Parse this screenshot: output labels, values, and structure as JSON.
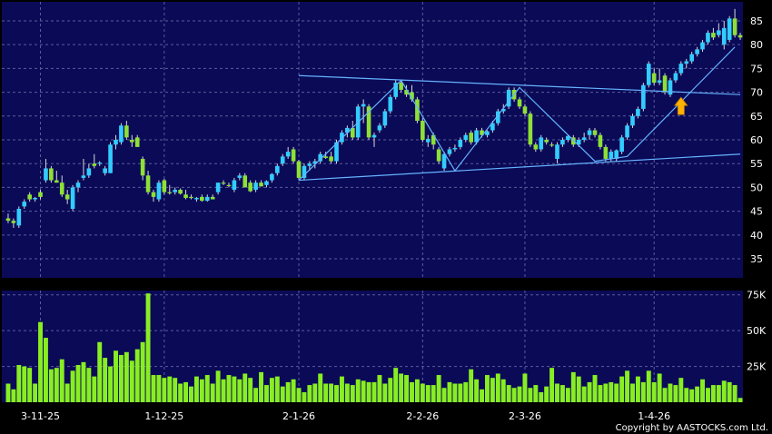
{
  "chart_data": {
    "type": "candlestick",
    "colors": {
      "background": "#000000",
      "panel": "#0a0a57",
      "grid": "#5c5c9a",
      "up_candle": "#33ccff",
      "down_candle": "#8ee036",
      "volume": "#88ee22",
      "trendline": "#66b3ff",
      "arrow": "#ffb300"
    },
    "price_axis": {
      "range": [
        31,
        89
      ],
      "ticks": [
        "35",
        "40",
        "45",
        "50",
        "55",
        "60",
        "65",
        "70",
        "75",
        "80",
        "85"
      ]
    },
    "volume_axis": {
      "range": [
        0,
        78000
      ],
      "ticks": [
        "75K",
        "50K",
        "25K"
      ]
    },
    "x_labels": [
      {
        "label": "3-11-25",
        "index": 6
      },
      {
        "label": "1-12-25",
        "index": 29
      },
      {
        "label": "2-1-26",
        "index": 54
      },
      {
        "label": "2-2-26",
        "index": 77
      },
      {
        "label": "2-3-26",
        "index": 96
      },
      {
        "label": "1-4-26",
        "index": 120
      }
    ],
    "candles": [
      [
        43.5,
        44.5,
        42.5,
        43.0
      ],
      [
        43.0,
        43.5,
        41.5,
        42.5
      ],
      [
        42.0,
        46.0,
        41.5,
        45.5
      ],
      [
        46.0,
        47.5,
        45.5,
        47.0
      ],
      [
        48.5,
        49.0,
        47.0,
        47.5
      ],
      [
        47.5,
        48.0,
        47.0,
        47.8
      ],
      [
        49.0,
        49.5,
        47.5,
        48.0
      ],
      [
        51.5,
        56.0,
        51.0,
        54.0
      ],
      [
        54.0,
        54.5,
        51.0,
        51.5
      ],
      [
        51.5,
        53.5,
        51.0,
        51.0
      ],
      [
        51.0,
        52.5,
        48.0,
        48.5
      ],
      [
        48.5,
        49.5,
        46.5,
        47.5
      ],
      [
        45.5,
        50.5,
        45.0,
        50.0
      ],
      [
        50.0,
        51.5,
        49.0,
        51.0
      ],
      [
        52.0,
        56.0,
        51.5,
        52.5
      ],
      [
        52.5,
        55.0,
        52.0,
        54.0
      ],
      [
        55.0,
        57.0,
        54.0,
        54.5
      ],
      [
        55.0,
        55.5,
        54.5,
        55.2
      ],
      [
        53.0,
        54.5,
        52.5,
        54.0
      ],
      [
        53.0,
        59.5,
        53.0,
        59.0
      ],
      [
        59.0,
        61.0,
        58.0,
        60.0
      ],
      [
        59.5,
        63.5,
        59.0,
        63.0
      ],
      [
        63.0,
        64.0,
        60.0,
        60.5
      ],
      [
        60.0,
        61.0,
        58.5,
        59.5
      ],
      [
        60.5,
        61.0,
        58.5,
        58.5
      ],
      [
        56.0,
        56.5,
        51.5,
        52.5
      ],
      [
        52.5,
        53.5,
        48.5,
        49.0
      ],
      [
        49.0,
        49.5,
        47.0,
        48.0
      ],
      [
        47.5,
        51.5,
        47.0,
        51.0
      ],
      [
        51.5,
        51.8,
        48.5,
        49.0
      ],
      [
        49.0,
        50.5,
        48.5,
        48.8
      ],
      [
        49.0,
        50.0,
        48.5,
        49.5
      ],
      [
        49.5,
        49.8,
        48.5,
        48.7
      ],
      [
        48.5,
        49.5,
        47.5,
        47.8
      ],
      [
        48.0,
        48.5,
        47.5,
        47.9
      ],
      [
        47.5,
        48.0,
        47.0,
        47.8
      ],
      [
        48.0,
        48.5,
        47.0,
        47.2
      ],
      [
        47.2,
        48.5,
        47.0,
        48.0
      ],
      [
        48.0,
        48.5,
        47.5,
        47.5
      ],
      [
        49.0,
        51.0,
        48.5,
        51.0
      ],
      [
        51.0,
        51.5,
        50.5,
        50.8
      ],
      [
        50.5,
        51.0,
        50.0,
        50.4
      ],
      [
        49.5,
        52.0,
        49.0,
        51.5
      ],
      [
        52.0,
        53.0,
        51.5,
        52.5
      ],
      [
        52.5,
        53.0,
        50.0,
        50.0
      ],
      [
        51.0,
        51.5,
        49.0,
        49.2
      ],
      [
        49.5,
        51.5,
        49.0,
        51.0
      ],
      [
        51.0,
        51.5,
        50.5,
        50.2
      ],
      [
        50.5,
        51.5,
        50.0,
        51.3
      ],
      [
        51.5,
        53.0,
        51.0,
        52.8
      ],
      [
        53.0,
        55.0,
        52.5,
        54.5
      ],
      [
        55.0,
        57.0,
        54.5,
        56.5
      ],
      [
        56.5,
        58.5,
        56.0,
        57.5
      ],
      [
        58.0,
        58.5,
        55.0,
        55.5
      ],
      [
        55.5,
        55.8,
        51.5,
        52.0
      ],
      [
        52.0,
        55.0,
        51.5,
        54.5
      ],
      [
        54.5,
        55.5,
        53.5,
        55.0
      ],
      [
        55.0,
        56.0,
        54.0,
        55.5
      ],
      [
        55.5,
        57.5,
        55.0,
        57.0
      ],
      [
        56.5,
        57.5,
        56.0,
        56.2
      ],
      [
        56.5,
        57.5,
        55.0,
        55.5
      ],
      [
        55.5,
        60.0,
        55.0,
        59.5
      ],
      [
        59.5,
        62.0,
        59.0,
        61.5
      ],
      [
        61.5,
        63.0,
        60.5,
        62.5
      ],
      [
        62.5,
        64.0,
        60.0,
        60.5
      ],
      [
        60.5,
        67.5,
        60.0,
        67.0
      ],
      [
        67.0,
        68.5,
        63.5,
        67.5
      ],
      [
        67.0,
        67.5,
        60.0,
        60.5
      ],
      [
        60.5,
        61.5,
        58.5,
        61.0
      ],
      [
        62.0,
        63.5,
        61.5,
        63.0
      ],
      [
        63.0,
        66.5,
        62.5,
        66.0
      ],
      [
        66.0,
        69.5,
        65.5,
        69.0
      ],
      [
        69.0,
        72.5,
        68.5,
        72.0
      ],
      [
        72.0,
        72.5,
        70.0,
        70.5
      ],
      [
        70.5,
        71.5,
        69.0,
        69.5
      ],
      [
        70.0,
        71.5,
        68.0,
        68.5
      ],
      [
        68.5,
        69.0,
        63.5,
        64.0
      ],
      [
        64.0,
        64.5,
        59.5,
        60.0
      ],
      [
        59.5,
        61.0,
        58.5,
        60.2
      ],
      [
        61.0,
        61.5,
        58.0,
        59.0
      ],
      [
        58.0,
        58.5,
        55.0,
        55.5
      ],
      [
        54.0,
        57.5,
        53.5,
        57.0
      ],
      [
        57.0,
        58.5,
        56.5,
        58.0
      ],
      [
        58.0,
        59.0,
        57.5,
        58.3
      ],
      [
        58.5,
        60.5,
        58.0,
        60.0
      ],
      [
        60.0,
        61.5,
        59.5,
        61.0
      ],
      [
        61.5,
        62.0,
        59.0,
        59.5
      ],
      [
        59.5,
        62.5,
        59.0,
        62.0
      ],
      [
        62.0,
        62.5,
        60.5,
        61.0
      ],
      [
        61.0,
        62.0,
        60.5,
        61.8
      ],
      [
        62.0,
        64.0,
        61.5,
        63.5
      ],
      [
        63.5,
        66.5,
        63.0,
        66.0
      ],
      [
        66.0,
        67.5,
        65.5,
        66.5
      ],
      [
        67.0,
        71.0,
        66.5,
        70.5
      ],
      [
        70.5,
        71.0,
        68.0,
        68.5
      ],
      [
        68.5,
        69.0,
        66.5,
        67.0
      ],
      [
        67.0,
        67.5,
        65.0,
        65.5
      ],
      [
        65.5,
        66.0,
        58.5,
        59.0
      ],
      [
        59.0,
        59.5,
        57.5,
        58.0
      ],
      [
        58.0,
        61.0,
        57.5,
        60.5
      ],
      [
        60.0,
        60.5,
        59.0,
        59.5
      ],
      [
        59.0,
        59.5,
        58.5,
        58.8
      ],
      [
        56.0,
        59.5,
        55.0,
        59.0
      ],
      [
        59.0,
        60.5,
        58.5,
        60.0
      ],
      [
        60.0,
        61.0,
        59.5,
        60.8
      ],
      [
        60.5,
        61.0,
        58.5,
        59.0
      ],
      [
        59.0,
        60.5,
        58.5,
        60.0
      ],
      [
        60.0,
        61.5,
        59.5,
        60.5
      ],
      [
        61.0,
        62.5,
        60.0,
        62.0
      ],
      [
        62.0,
        62.5,
        60.5,
        61.0
      ],
      [
        61.0,
        61.5,
        58.0,
        58.5
      ],
      [
        58.5,
        59.0,
        55.5,
        56.0
      ],
      [
        56.0,
        58.0,
        55.5,
        57.5
      ],
      [
        56.0,
        58.0,
        55.5,
        57.8
      ],
      [
        57.5,
        61.0,
        57.0,
        60.5
      ],
      [
        60.5,
        63.5,
        60.0,
        63.0
      ],
      [
        63.0,
        65.5,
        62.5,
        65.0
      ],
      [
        65.0,
        67.0,
        64.5,
        66.5
      ],
      [
        66.5,
        72.0,
        66.0,
        71.5
      ],
      [
        71.5,
        76.5,
        71.0,
        76.0
      ],
      [
        74.0,
        75.0,
        71.5,
        72.0
      ],
      [
        72.0,
        75.0,
        71.5,
        72.5
      ],
      [
        73.5,
        74.0,
        69.5,
        70.0
      ],
      [
        69.5,
        73.0,
        69.0,
        72.5
      ],
      [
        72.5,
        74.5,
        72.0,
        74.0
      ],
      [
        74.0,
        76.5,
        73.5,
        76.0
      ],
      [
        76.0,
        77.0,
        75.0,
        76.5
      ],
      [
        76.5,
        78.5,
        76.0,
        78.0
      ],
      [
        78.0,
        79.5,
        77.5,
        79.0
      ],
      [
        79.0,
        81.0,
        78.5,
        80.5
      ],
      [
        80.5,
        83.0,
        80.0,
        82.5
      ],
      [
        82.5,
        83.5,
        81.0,
        81.5
      ],
      [
        82.0,
        84.5,
        81.5,
        83.0
      ],
      [
        80.0,
        85.0,
        79.0,
        83.5
      ],
      [
        81.0,
        86.0,
        80.5,
        85.5
      ],
      [
        85.5,
        87.5,
        81.5,
        82.0
      ],
      [
        82.0,
        82.5,
        81.0,
        81.5
      ]
    ],
    "volumes": [
      13000,
      9000,
      26000,
      25000,
      24000,
      13000,
      56000,
      45000,
      23000,
      24000,
      30000,
      13000,
      22000,
      26000,
      28000,
      24000,
      18000,
      42000,
      31000,
      25000,
      36000,
      33000,
      35000,
      29000,
      37000,
      42000,
      76000,
      19000,
      19000,
      17000,
      18000,
      17000,
      13000,
      14000,
      11000,
      18000,
      16000,
      19000,
      13000,
      22000,
      16000,
      19000,
      18000,
      16000,
      20000,
      17000,
      10000,
      21000,
      12000,
      17000,
      18000,
      11000,
      14000,
      16000,
      10000,
      7000,
      12000,
      13000,
      20000,
      13000,
      13000,
      12000,
      18000,
      13000,
      12000,
      16000,
      15000,
      14000,
      14000,
      19000,
      13000,
      17000,
      24000,
      20000,
      19000,
      14000,
      16000,
      13000,
      12000,
      12000,
      19000,
      10000,
      14000,
      13000,
      13000,
      14000,
      23000,
      16000,
      9000,
      19000,
      17000,
      20000,
      16000,
      12000,
      10000,
      11000,
      20000,
      10000,
      12000,
      7000,
      11000,
      24000,
      13000,
      12000,
      10000,
      21000,
      18000,
      11000,
      14000,
      19000,
      12000,
      13000,
      14000,
      13000,
      18000,
      22000,
      13000,
      18000,
      14000,
      22000,
      14000,
      20000,
      10000,
      13000,
      12000,
      17000,
      10000,
      9000,
      11000,
      16000,
      10000,
      12000,
      12000,
      15000,
      14000,
      12000,
      3000
    ],
    "trendlines": [
      [
        [
          54,
          73.5
        ],
        [
          136,
          69.5
        ]
      ],
      [
        [
          54,
          51.5
        ],
        [
          136,
          57.0
        ]
      ]
    ],
    "zigzag": [
      [
        54,
        51.5
      ],
      [
        73,
        72.5
      ],
      [
        83,
        53.5
      ],
      [
        95,
        71.0
      ],
      [
        109,
        55.5
      ],
      [
        115,
        56.5
      ],
      [
        135,
        79.5
      ]
    ],
    "arrow_marker": {
      "index": 125,
      "value": 69.5
    },
    "copyright": "Copyright by AASTOCKS.com Ltd."
  }
}
